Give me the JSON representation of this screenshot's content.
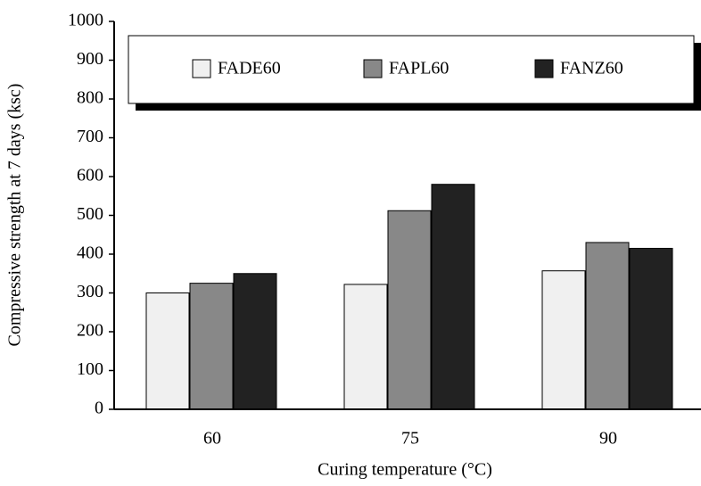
{
  "chart_data": {
    "type": "bar",
    "x_label": "Curing temperature (°C)",
    "y_label": "Compressive strength at 7 days (ksc)",
    "categories": [
      "60",
      "75",
      "90"
    ],
    "series": [
      {
        "name": "FADE60",
        "color": "#f0f0f0",
        "values": [
          300,
          322,
          357
        ]
      },
      {
        "name": "FAPL60",
        "color": "#888888",
        "values": [
          325,
          512,
          430
        ]
      },
      {
        "name": "FANZ60",
        "color": "#222222",
        "values": [
          350,
          580,
          415
        ]
      }
    ],
    "ylim": [
      0,
      1000
    ],
    "yticks": [
      0,
      100,
      200,
      300,
      400,
      500,
      600,
      700,
      800,
      900,
      1000
    ]
  }
}
